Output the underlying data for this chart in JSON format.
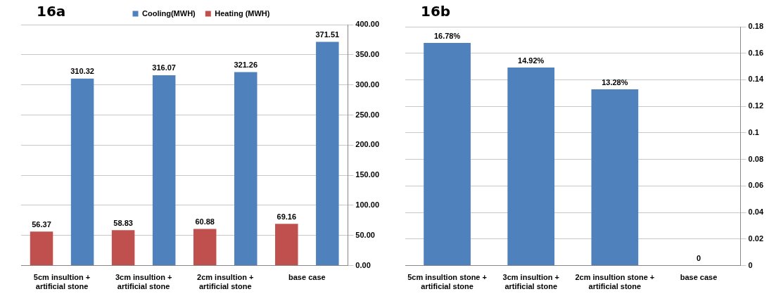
{
  "chart_data": [
    {
      "type": "bar",
      "title": "16a",
      "categories": [
        "5cm insultion +\nartificial stone",
        "3cm insultion +\nartificial stone",
        "2cm insultion +\nartificial stone",
        "base case"
      ],
      "series": [
        {
          "name": "Heating (MWH)",
          "color": "#c0504d",
          "values": [
            56.37,
            58.83,
            60.88,
            69.16
          ]
        },
        {
          "name": "Cooling(MWH)",
          "color": "#4f81bd",
          "values": [
            310.32,
            316.07,
            321.26,
            371.51
          ]
        }
      ],
      "ylim": [
        0,
        400
      ],
      "yticks": [
        {
          "value": 0,
          "label": "0.00"
        },
        {
          "value": 50,
          "label": "50.00"
        },
        {
          "value": 100,
          "label": "100.00"
        },
        {
          "value": 150,
          "label": "150.00"
        },
        {
          "value": 200,
          "label": "200.00"
        },
        {
          "value": 250,
          "label": "250.00"
        },
        {
          "value": 300,
          "label": "300.00"
        },
        {
          "value": 350,
          "label": "350.00"
        },
        {
          "value": 400,
          "label": "400.00"
        }
      ],
      "grid": "y",
      "legend": "top",
      "data_labels": true
    },
    {
      "type": "bar",
      "title": "16b",
      "categories": [
        "5cm insultion stone +\nartificial stone",
        "3cm insultion +\nartificial stone",
        "2cm insultion stone +\nartificial stone",
        "base case"
      ],
      "values": [
        0.1678,
        0.1492,
        0.1328,
        0
      ],
      "color": "#4f81bd",
      "value_labels": [
        "16.78%",
        "14.92%",
        "13.28%",
        "0"
      ],
      "ylim": [
        0,
        0.18
      ],
      "yticks": [
        0,
        0.02,
        0.04,
        0.06,
        0.08,
        0.1,
        0.12,
        0.14,
        0.16,
        0.18
      ],
      "grid": "y"
    }
  ]
}
